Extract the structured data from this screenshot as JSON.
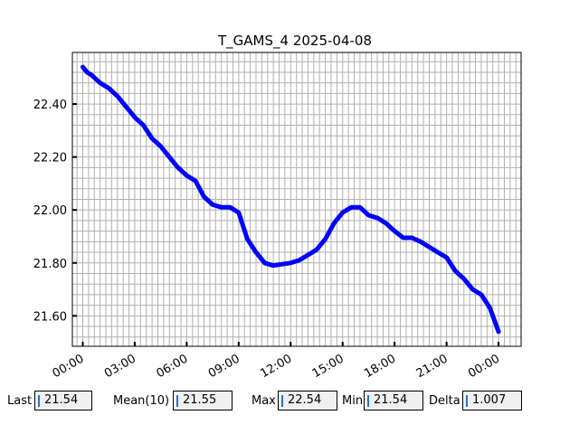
{
  "chart_data": {
    "type": "line",
    "title": "T_GAMS_4 2025-04-08",
    "xlabel": "",
    "ylabel": "",
    "x_ticks": [
      "00:00",
      "03:00",
      "06:00",
      "09:00",
      "12:00",
      "15:00",
      "18:00",
      "21:00",
      "00:00"
    ],
    "y_ticks": [
      "21.60",
      "21.80",
      "22.00",
      "22.20",
      "22.40"
    ],
    "xlim": [
      -0.6,
      25.3
    ],
    "ylim": [
      21.485,
      22.595
    ],
    "grid": true,
    "series": [
      {
        "color": "#0000ff",
        "x": [
          0,
          0.25,
          0.5,
          1.0,
          1.5,
          2.0,
          2.5,
          3.0,
          3.5,
          4.0,
          4.5,
          5.0,
          5.5,
          6.0,
          6.5,
          7.0,
          7.5,
          8.0,
          8.5,
          8.75,
          9.0,
          9.5,
          10.0,
          10.5,
          11.0,
          11.5,
          12.0,
          12.5,
          13.0,
          13.5,
          14.0,
          14.5,
          15.0,
          15.5,
          16.0,
          16.5,
          17.0,
          17.5,
          18.0,
          18.5,
          19.0,
          19.5,
          20.0,
          20.5,
          21.0,
          21.5,
          22.0,
          22.5,
          23.0,
          23.5,
          24.0
        ],
        "y": [
          22.54,
          22.52,
          22.51,
          22.48,
          22.46,
          22.43,
          22.39,
          22.35,
          22.32,
          22.27,
          22.24,
          22.2,
          22.16,
          22.13,
          22.11,
          22.05,
          22.02,
          22.01,
          22.01,
          22.0,
          21.99,
          21.89,
          21.84,
          21.8,
          21.79,
          21.795,
          21.8,
          21.81,
          21.83,
          21.85,
          21.89,
          21.95,
          21.99,
          22.01,
          22.01,
          21.98,
          21.97,
          21.95,
          21.92,
          21.895,
          21.895,
          21.88,
          21.86,
          21.84,
          21.82,
          21.77,
          21.74,
          21.7,
          21.68,
          21.63,
          21.54
        ]
      }
    ]
  },
  "stats": {
    "last_label": "Last",
    "last_value": "21.54",
    "mean_label": "Mean(10)",
    "mean_value": "21.55",
    "max_label": "Max",
    "max_value": "22.54",
    "min_label": "Min",
    "min_value": "21.54",
    "delta_label": "Delta",
    "delta_value": "1.007"
  }
}
